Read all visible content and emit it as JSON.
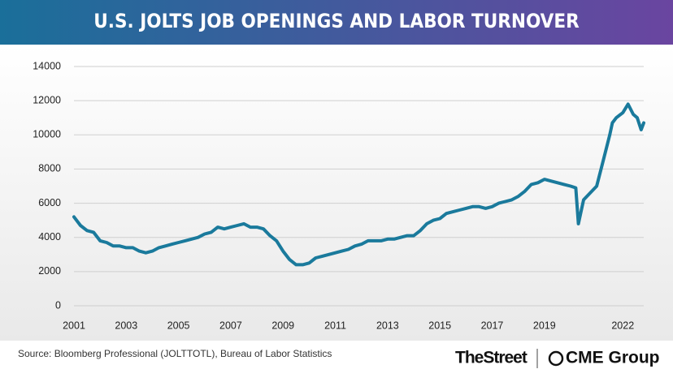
{
  "chart_data": {
    "type": "line",
    "title": "U.S. JOLTS JOB OPENINGS AND LABOR TURNOVER",
    "source": "Source: Bloomberg Professional (JOLTTOTL), Bureau of Labor Statistics",
    "brands": [
      "TheStreet",
      "CME Group"
    ],
    "x": [
      2001.0,
      2001.25,
      2001.5,
      2001.75,
      2002.0,
      2002.25,
      2002.5,
      2002.75,
      2003.0,
      2003.25,
      2003.5,
      2003.75,
      2004.0,
      2004.25,
      2004.5,
      2004.75,
      2005.0,
      2005.25,
      2005.5,
      2005.75,
      2006.0,
      2006.25,
      2006.5,
      2006.75,
      2007.0,
      2007.25,
      2007.5,
      2007.75,
      2008.0,
      2008.25,
      2008.5,
      2008.75,
      2009.0,
      2009.25,
      2009.5,
      2009.75,
      2010.0,
      2010.25,
      2010.5,
      2010.75,
      2011.0,
      2011.25,
      2011.5,
      2011.75,
      2012.0,
      2012.25,
      2012.5,
      2012.75,
      2013.0,
      2013.25,
      2013.5,
      2013.75,
      2014.0,
      2014.25,
      2014.5,
      2014.75,
      2015.0,
      2015.25,
      2015.5,
      2015.75,
      2016.0,
      2016.25,
      2016.5,
      2016.75,
      2017.0,
      2017.25,
      2017.5,
      2017.75,
      2018.0,
      2018.25,
      2018.5,
      2018.75,
      2019.0,
      2019.25,
      2019.5,
      2019.75,
      2020.0,
      2020.2,
      2020.3,
      2020.5,
      2020.75,
      2021.0,
      2021.25,
      2021.5,
      2021.6,
      2021.75,
      2022.0,
      2022.2,
      2022.4,
      2022.55,
      2022.7,
      2022.8
    ],
    "series": [
      {
        "name": "Job openings",
        "color": "#1a7a9c",
        "values": [
          5200,
          4700,
          4400,
          4300,
          3800,
          3700,
          3500,
          3500,
          3400,
          3400,
          3200,
          3100,
          3200,
          3400,
          3500,
          3600,
          3700,
          3800,
          3900,
          4000,
          4200,
          4300,
          4600,
          4500,
          4600,
          4700,
          4800,
          4600,
          4600,
          4500,
          4100,
          3800,
          3200,
          2700,
          2400,
          2400,
          2500,
          2800,
          2900,
          3000,
          3100,
          3200,
          3300,
          3500,
          3600,
          3800,
          3800,
          3800,
          3900,
          3900,
          4000,
          4100,
          4100,
          4400,
          4800,
          5000,
          5100,
          5400,
          5500,
          5600,
          5700,
          5800,
          5800,
          5700,
          5800,
          6000,
          6100,
          6200,
          6400,
          6700,
          7100,
          7200,
          7400,
          7300,
          7200,
          7100,
          7000,
          6900,
          4800,
          6200,
          6600,
          7000,
          8500,
          10000,
          10700,
          11000,
          11300,
          11800,
          11200,
          11000,
          10300,
          10700
        ]
      }
    ],
    "xlim": [
      2001,
      2022.8
    ],
    "xticks": [
      2001,
      2003,
      2005,
      2007,
      2009,
      2011,
      2013,
      2015,
      2017,
      2019,
      2022
    ],
    "ylim": [
      0,
      14000
    ],
    "yticks": [
      0,
      2000,
      4000,
      6000,
      8000,
      10000,
      12000,
      14000
    ],
    "grid": true
  }
}
